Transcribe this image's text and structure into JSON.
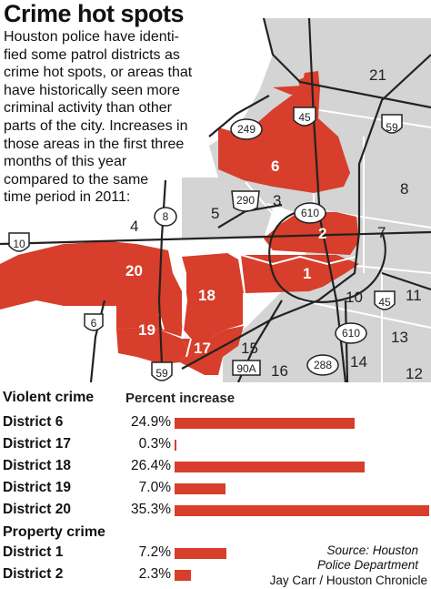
{
  "title": "Crime hot spots",
  "intro_lines": [
    "Houston police have identi-",
    "fied some patrol districts as",
    "crime hot spots, or areas that",
    "have historically seen more",
    "criminal activity than other",
    "parts of the city. Increases in",
    "those areas in the first three",
    "months of this year",
    "compared to the same",
    "time period in 2011:"
  ],
  "map": {
    "colors": {
      "hotspot": "#d73e2b",
      "district": "#d4d4d4",
      "road": "#222222",
      "background": "#ffffff"
    },
    "hot_districts": [
      "6",
      "2",
      "1",
      "20",
      "18",
      "19",
      "17"
    ],
    "other_districts": [
      "21",
      "8",
      "3",
      "5",
      "4",
      "7",
      "10",
      "11",
      "13",
      "14",
      "15",
      "16",
      "12"
    ],
    "highways": [
      "45",
      "249",
      "59",
      "290",
      "610",
      "8",
      "10",
      "45",
      "610",
      "6",
      "59",
      "90A",
      "288"
    ]
  },
  "violent": {
    "heading": "Violent crime",
    "subheading": "Percent increase",
    "rows": [
      {
        "name": "District 6",
        "pct_label": "24.9%",
        "value": 24.9
      },
      {
        "name": "District 17",
        "pct_label": "0.3%",
        "value": 0.3
      },
      {
        "name": "District 18",
        "pct_label": "26.4%",
        "value": 26.4
      },
      {
        "name": "District 19",
        "pct_label": "7.0%",
        "value": 7.0
      },
      {
        "name": "District 20",
        "pct_label": "35.3%",
        "value": 35.3
      }
    ]
  },
  "property": {
    "heading": "Property crime",
    "rows": [
      {
        "name": "District 1",
        "pct_label": "7.2%",
        "value": 7.2
      },
      {
        "name": "District 2",
        "pct_label": "2.3%",
        "value": 2.3
      }
    ]
  },
  "source_lines": [
    "Source: Houston",
    "Police Department"
  ],
  "credit": "Jay Carr / Houston Chronicle"
}
